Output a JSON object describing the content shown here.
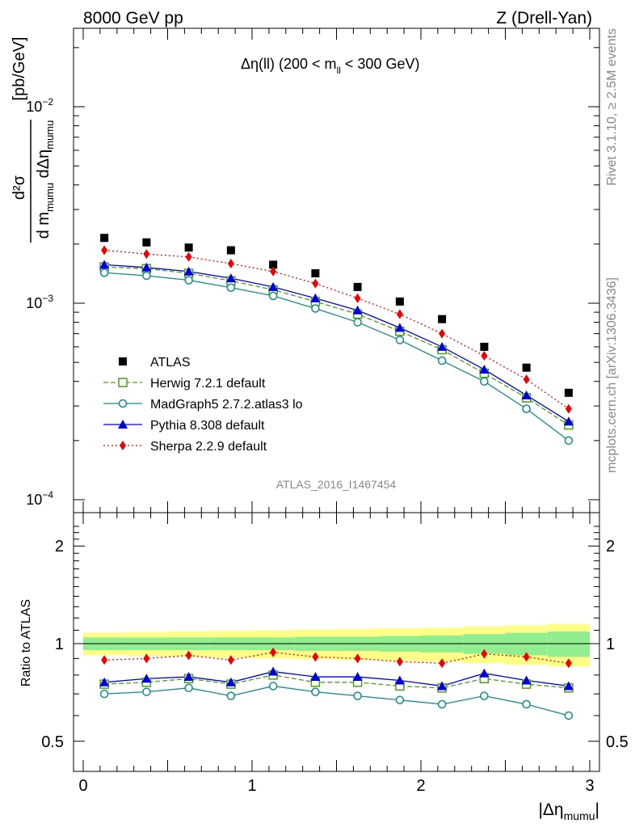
{
  "header": {
    "left": "8000 GeV pp",
    "right": "Z (Drell-Yan)"
  },
  "side": {
    "rivet": "Rivet 3.1.10, ≥ 2.5M events",
    "site": "mcplots.cern.ch [arXiv:1306.3436]"
  },
  "top_panel": {
    "title": "Δη(ll) (200 < m",
    "title_sub": "ll",
    "title_end": " < 300 GeV)",
    "ylabel_num": "d²σ",
    "ylabel_den": "d m",
    "ylabel_den_sub": "mumu",
    "ylabel_den_mid": " dΔη",
    "ylabel_den_sub2": "mumu",
    "ylabel_unit": "[pb/GeV]",
    "analysis_id": "ATLAS_2016_I1467454",
    "yticks": [
      {
        "base": "10",
        "exp": "−4"
      },
      {
        "base": "10",
        "exp": "−3"
      },
      {
        "base": "10",
        "exp": "−2"
      }
    ]
  },
  "ratio_panel": {
    "ylabel": "Ratio to ATLAS",
    "ytick_labels": [
      "0.5",
      "1",
      "2"
    ]
  },
  "x_axis": {
    "label": "|Δη",
    "label_sub": "mumu",
    "label_end": "|",
    "tick_labels": [
      "0",
      "1",
      "2",
      "3"
    ]
  },
  "chart_data": {
    "type": "scatter",
    "x_range": [
      -0.1,
      3.0
    ],
    "y_range_top": [
      0.0001,
      0.025
    ],
    "y_scale_top": "log",
    "y_range_ratio": [
      0.4,
      2.4
    ],
    "y_scale_ratio": "log",
    "legend_position": "lower-left",
    "x": [
      0.125,
      0.375,
      0.625,
      0.875,
      1.125,
      1.375,
      1.625,
      1.875,
      2.125,
      2.375,
      2.625,
      2.875
    ],
    "x_bins": [
      0.0,
      0.25,
      0.5,
      0.75,
      1.0,
      1.25,
      1.5,
      1.75,
      2.0,
      2.25,
      2.5,
      2.75,
      3.0
    ],
    "series": [
      {
        "name": "ATLAS",
        "color": "#000000",
        "marker": "square",
        "values": [
          0.00215,
          0.00204,
          0.00192,
          0.00186,
          0.00157,
          0.00142,
          0.00121,
          0.00102,
          0.00083,
          0.0006,
          0.00047,
          0.00035
        ]
      },
      {
        "name": "Herwig 7.2.1 default",
        "color": "#4d9e1f",
        "marker": "open-square",
        "dash": "6,3",
        "values": [
          0.00153,
          0.0015,
          0.00142,
          0.0013,
          0.00117,
          0.00102,
          0.00088,
          0.00072,
          0.00058,
          0.00044,
          0.00033,
          0.00024
        ]
      },
      {
        "name": "MadGraph5 2.7.2.atlas3 lo",
        "color": "#138a8a",
        "marker": "open-circle",
        "values": [
          0.00143,
          0.00138,
          0.00131,
          0.0012,
          0.00109,
          0.00094,
          0.0008,
          0.00065,
          0.00051,
          0.0004,
          0.00029,
          0.0002
        ]
      },
      {
        "name": "Pythia 8.308 default",
        "color": "#0000dd",
        "marker": "triangle",
        "values": [
          0.00157,
          0.00152,
          0.00145,
          0.00134,
          0.00121,
          0.00106,
          0.00092,
          0.00075,
          0.0006,
          0.00046,
          0.00034,
          0.00025
        ]
      },
      {
        "name": "Sherpa 2.2.9 default",
        "color": "#ee0000",
        "marker": "diamond",
        "dash": "2,3",
        "values": [
          0.00186,
          0.00178,
          0.00172,
          0.00159,
          0.00145,
          0.00126,
          0.00106,
          0.00088,
          0.0007,
          0.00054,
          0.00041,
          0.00029
        ]
      }
    ],
    "ratio": [
      {
        "name": "Herwig 7.2.1 default",
        "values": [
          0.75,
          0.76,
          0.78,
          0.75,
          0.8,
          0.76,
          0.76,
          0.74,
          0.73,
          0.78,
          0.75,
          0.73
        ]
      },
      {
        "name": "MadGraph5 2.7.2.atlas3 lo",
        "values": [
          0.7,
          0.71,
          0.73,
          0.69,
          0.74,
          0.71,
          0.69,
          0.67,
          0.65,
          0.69,
          0.65,
          0.6
        ]
      },
      {
        "name": "Pythia 8.308 default",
        "values": [
          0.76,
          0.78,
          0.79,
          0.76,
          0.82,
          0.79,
          0.79,
          0.77,
          0.74,
          0.81,
          0.77,
          0.74
        ]
      },
      {
        "name": "Sherpa 2.2.9 default",
        "values": [
          0.89,
          0.9,
          0.92,
          0.89,
          0.94,
          0.91,
          0.9,
          0.88,
          0.87,
          0.93,
          0.91,
          0.87
        ]
      }
    ],
    "ratio_band_inner": [
      0.045,
      0.045,
      0.045,
      0.045,
      0.045,
      0.05,
      0.05,
      0.055,
      0.06,
      0.07,
      0.08,
      0.09
    ],
    "ratio_band_outer": [
      0.08,
      0.085,
      0.09,
      0.095,
      0.1,
      0.105,
      0.11,
      0.115,
      0.12,
      0.13,
      0.14,
      0.15
    ]
  }
}
